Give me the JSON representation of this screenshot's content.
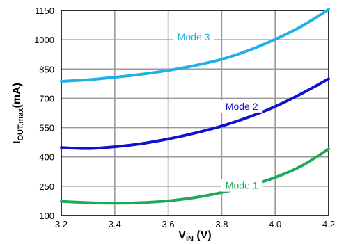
{
  "chart_data": {
    "type": "line",
    "xlabel": {
      "main": "V",
      "sub": "IN",
      "unit": " (V)"
    },
    "ylabel": {
      "main": "I",
      "sub": "OUT,max",
      "unit": "(mA)"
    },
    "xlim": [
      3.2,
      4.2
    ],
    "ylim": [
      100,
      1150
    ],
    "xticks": [
      3.2,
      3.4,
      3.6,
      3.8,
      4.0,
      4.2
    ],
    "xtick_labels": [
      "3.2",
      "3.4",
      "3.6",
      "3.8",
      "4.0",
      "4.2"
    ],
    "yticks": [
      100,
      250,
      400,
      550,
      700,
      850,
      1000,
      1150
    ],
    "ytick_labels": [
      "100",
      "250",
      "400",
      "550",
      "700",
      "850",
      "1000",
      "1150"
    ],
    "grid": true,
    "series": [
      {
        "name": "Mode 1",
        "color": "#1aaa5a",
        "x": [
          3.2,
          3.3,
          3.4,
          3.5,
          3.6,
          3.7,
          3.8,
          3.9,
          4.0,
          4.1,
          4.2
        ],
        "y": [
          172,
          166,
          163,
          166,
          175,
          192,
          218,
          252,
          295,
          355,
          440
        ]
      },
      {
        "name": "Mode 2",
        "color": "#1010d0",
        "x": [
          3.2,
          3.3,
          3.4,
          3.5,
          3.6,
          3.7,
          3.8,
          3.9,
          4.0,
          4.1,
          4.2
        ],
        "y": [
          448,
          443,
          452,
          468,
          492,
          522,
          558,
          603,
          658,
          725,
          800
        ]
      },
      {
        "name": "Mode 3",
        "color": "#20b0e8",
        "x": [
          3.2,
          3.3,
          3.4,
          3.5,
          3.6,
          3.7,
          3.8,
          3.9,
          4.0,
          4.1,
          4.2
        ],
        "y": [
          787,
          795,
          808,
          823,
          843,
          868,
          900,
          945,
          1002,
          1070,
          1155
        ]
      }
    ]
  }
}
